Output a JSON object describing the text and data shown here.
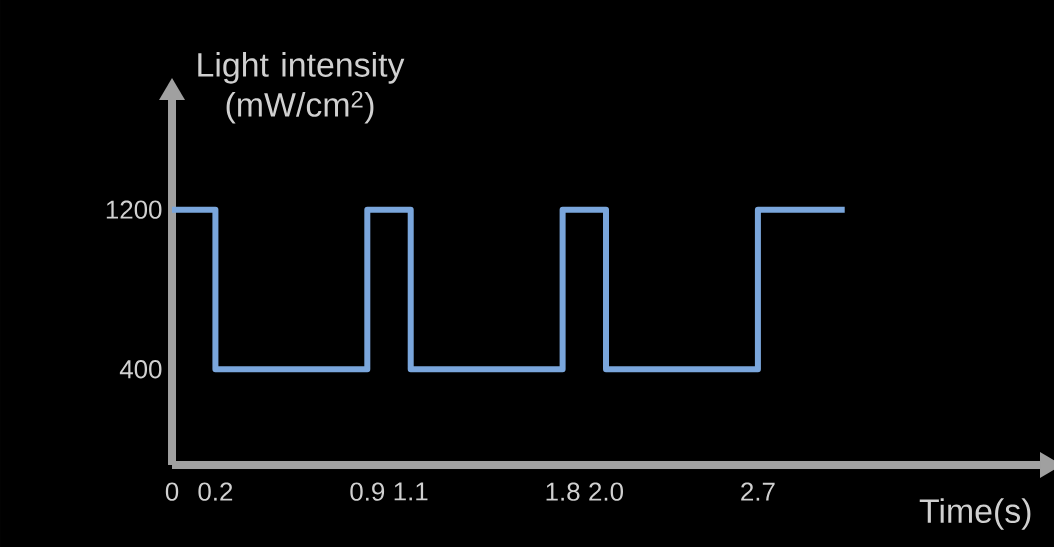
{
  "chart_data": {
    "type": "step",
    "xlabel": "Time(s)",
    "ylabel": "Light intensity (mW/cm$^{2}$)",
    "x": [
      0,
      0.2,
      0.9,
      1.1,
      1.8,
      2.0,
      2.7,
      3.1
    ],
    "values": [
      1200,
      400,
      1200,
      400,
      1200,
      400,
      1200,
      1200
    ],
    "color": "#7aa6dc",
    "xlim": [
      0,
      4.0
    ],
    "ylim": [
      -80,
      1750
    ],
    "xticks": [
      0,
      0.2,
      0.9,
      1.1,
      1.8,
      {
        "value": 2.0,
        "label": "2.0"
      },
      2.7
    ],
    "yticks": [
      400,
      1200
    ]
  }
}
